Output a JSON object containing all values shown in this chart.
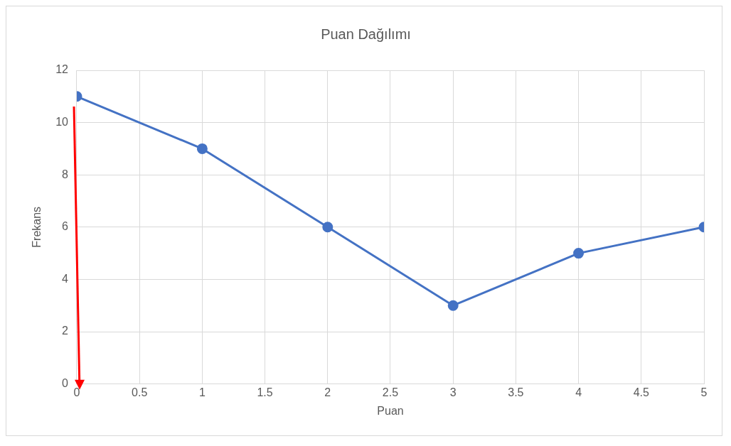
{
  "chart_data": {
    "type": "line",
    "title": "Puan Dağılımı",
    "xlabel": "Puan",
    "ylabel": "Frekans",
    "x": [
      0,
      1,
      2,
      3,
      4,
      5
    ],
    "series": [
      {
        "color": "#4472c4",
        "values": [
          11,
          9,
          6,
          3,
          5,
          6
        ]
      }
    ],
    "xlim": [
      0,
      5
    ],
    "xticks": [
      0,
      0.5,
      1,
      1.5,
      2,
      2.5,
      3,
      3.5,
      4,
      4.5,
      5
    ],
    "ylim": [
      0,
      12
    ],
    "yticks": [
      0,
      2,
      4,
      6,
      8,
      10,
      12
    ],
    "grid": true,
    "legend": false,
    "marker": "circle",
    "line_style": "solid"
  }
}
